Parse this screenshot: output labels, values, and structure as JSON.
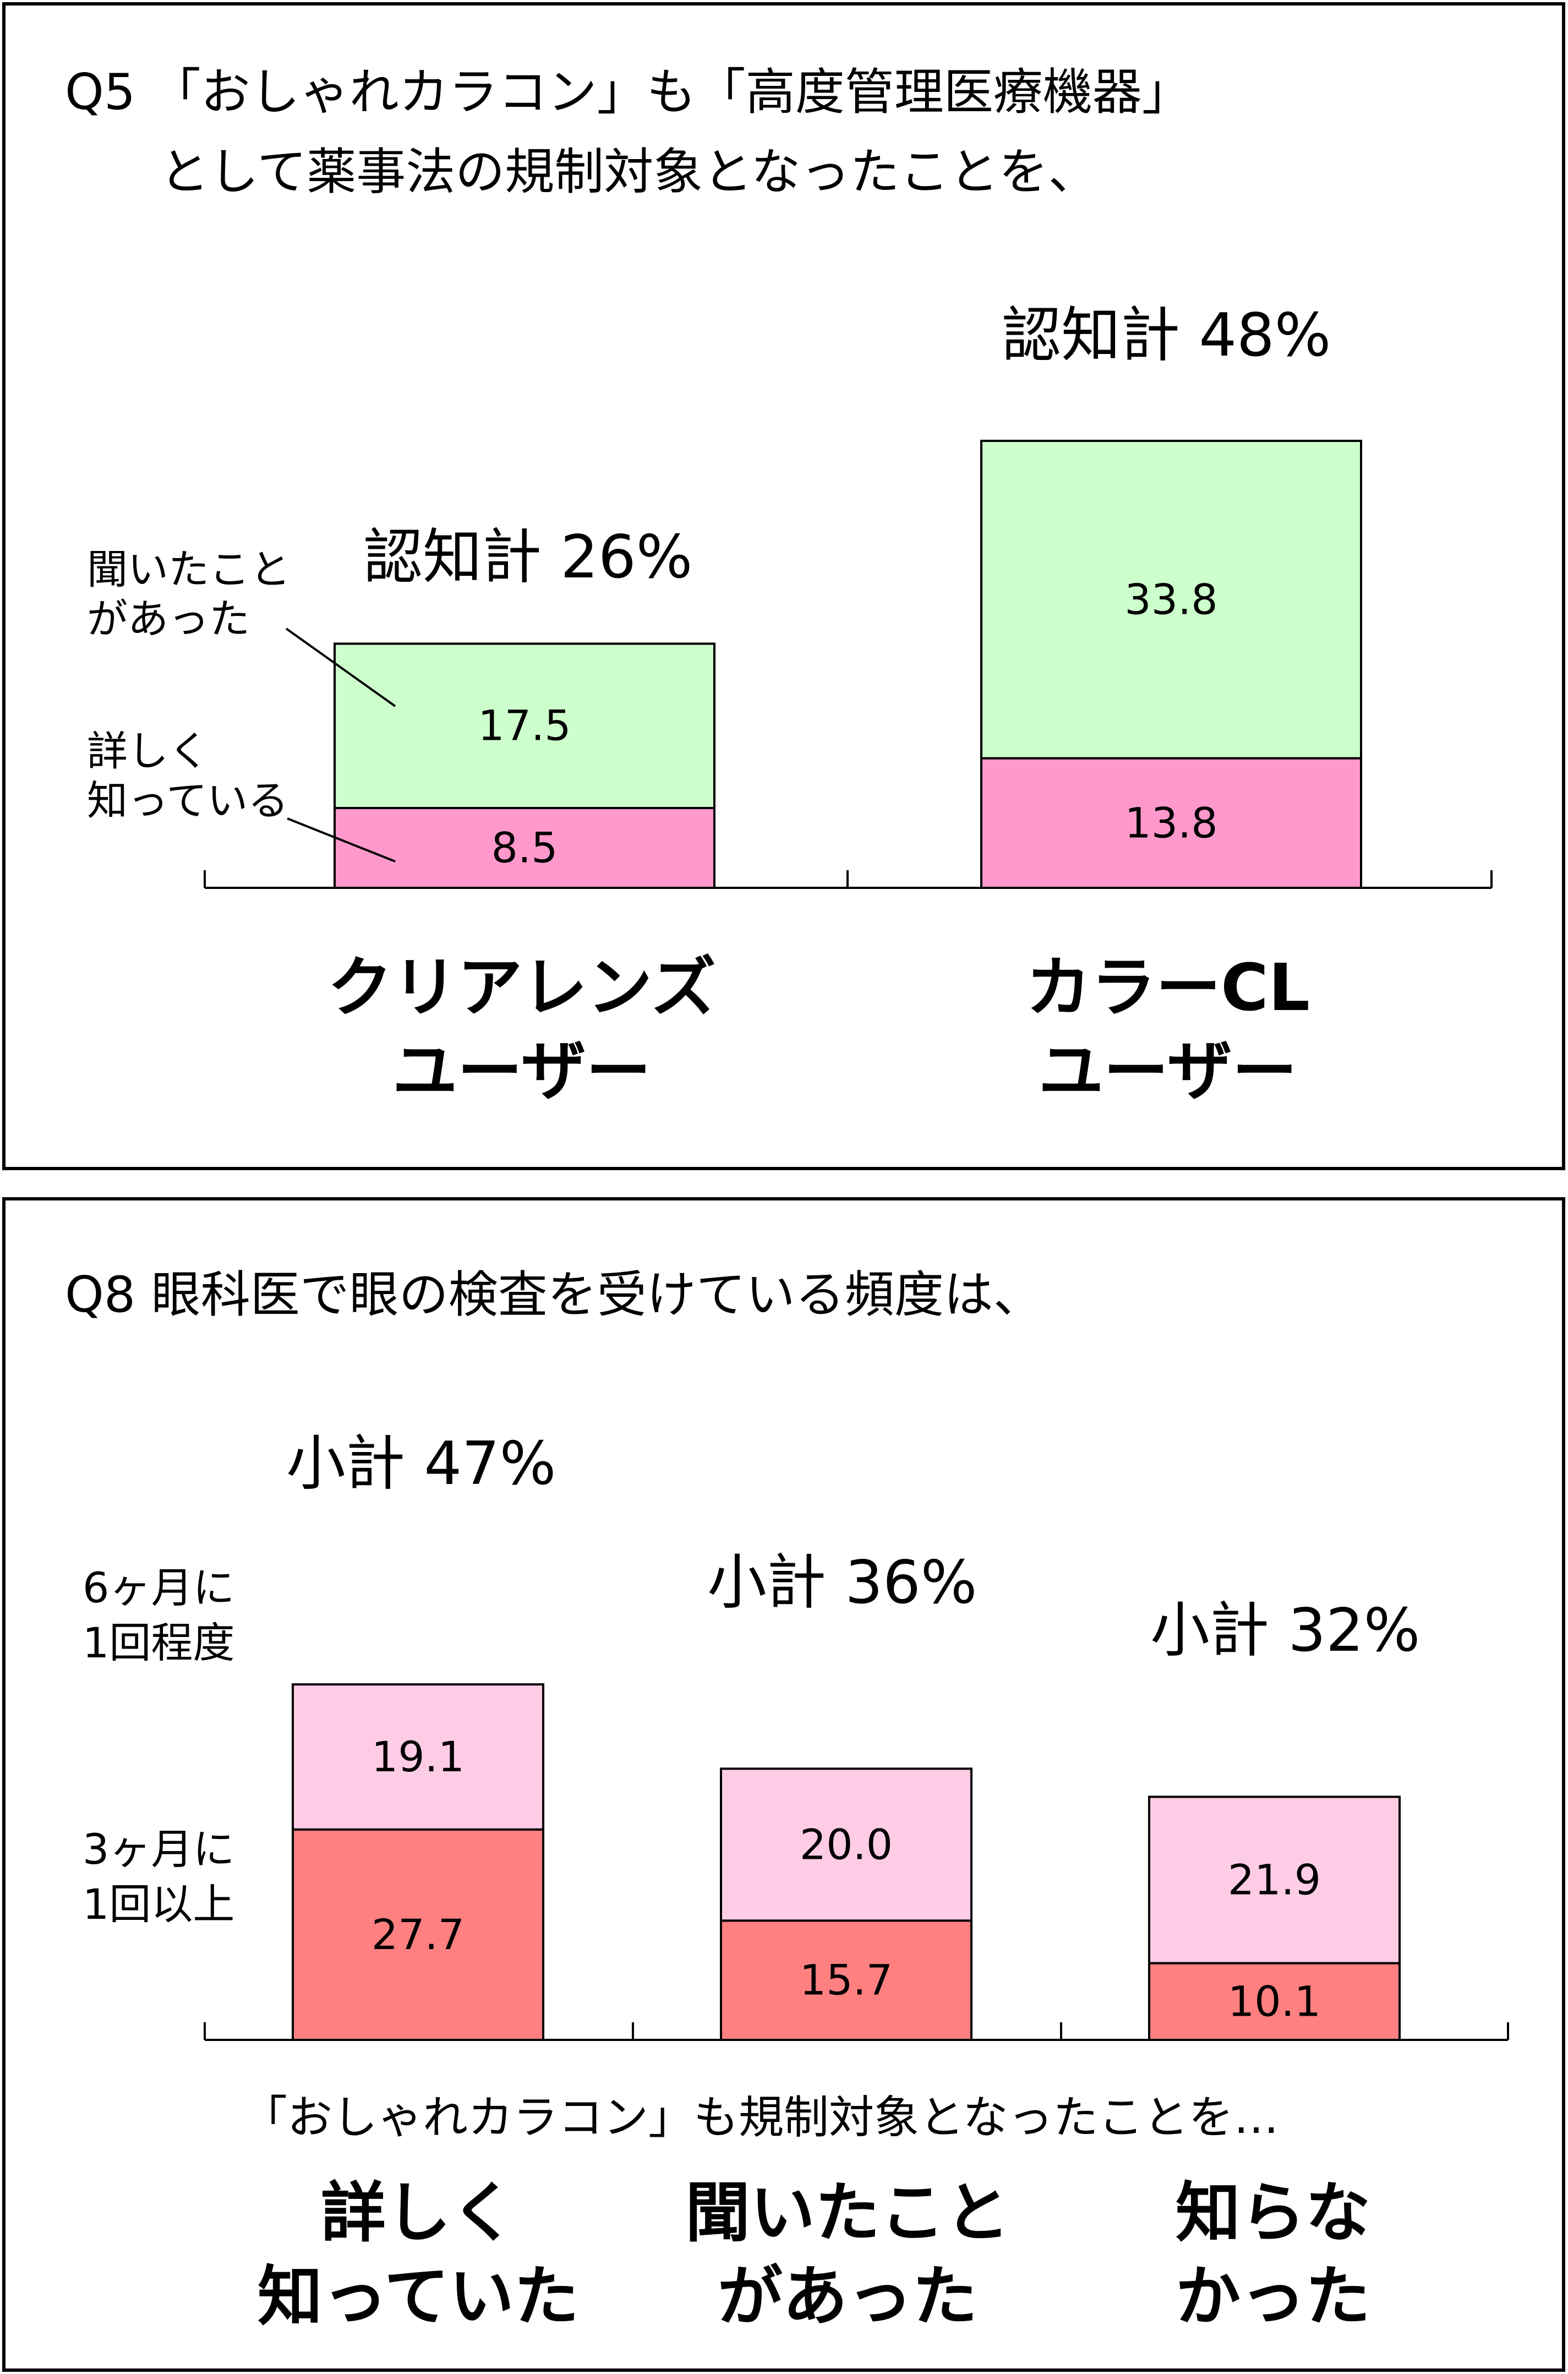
{
  "panel1": {
    "title_line1": "Q5 「おしゃれカラコン」も「高度管理医療機器」",
    "title_line2": "として薬事法の規制対象となったことを、",
    "series_labels": {
      "heard": [
        "聞いたこと",
        "があった"
      ],
      "detailed": [
        "詳しく",
        "知っている"
      ]
    },
    "colors": {
      "heard": "#ccffcc",
      "detailed": "#ff99cc"
    },
    "chart_data": {
      "type": "bar",
      "stacked": true,
      "categories": [
        "クリアレンズ\nユーザー",
        "カラーCL\nユーザー"
      ],
      "series": [
        {
          "name": "詳しく知っている",
          "values": [
            8.5,
            13.8
          ]
        },
        {
          "name": "聞いたことがあった",
          "values": [
            17.5,
            33.8
          ]
        }
      ],
      "totals": [
        "認知計 26%",
        "認知計 48%"
      ],
      "data_labels": [
        [
          "8.5",
          "17.5"
        ],
        [
          "13.8",
          "33.8"
        ]
      ]
    }
  },
  "panel2": {
    "title": "Q8 眼科医で眼の検査を受けている頻度は、",
    "series_labels": {
      "six_month": [
        "6ヶ月に",
        "1回程度"
      ],
      "three_month": [
        "3ヶ月に",
        "1回以上"
      ]
    },
    "axis_note": "「おしゃれカラコン」も規制対象となったことを…",
    "colors": {
      "six_month": "#ffcce5",
      "three_month": "#ff8080"
    },
    "chart_data": {
      "type": "bar",
      "stacked": true,
      "categories": [
        "詳しく\n知っていた",
        "聞いたこと\nがあった",
        "知らな\nかった"
      ],
      "series": [
        {
          "name": "3ヶ月に1回以上",
          "values": [
            27.7,
            15.7,
            10.1
          ]
        },
        {
          "name": "6ヶ月に1回程度",
          "values": [
            19.1,
            20.0,
            21.9
          ]
        }
      ],
      "totals": [
        "小計 47%",
        "小計 36%",
        "小計 32%"
      ],
      "data_labels": [
        [
          "27.7",
          "19.1"
        ],
        [
          "15.7",
          "20.0"
        ],
        [
          "10.1",
          "21.9"
        ]
      ]
    }
  }
}
